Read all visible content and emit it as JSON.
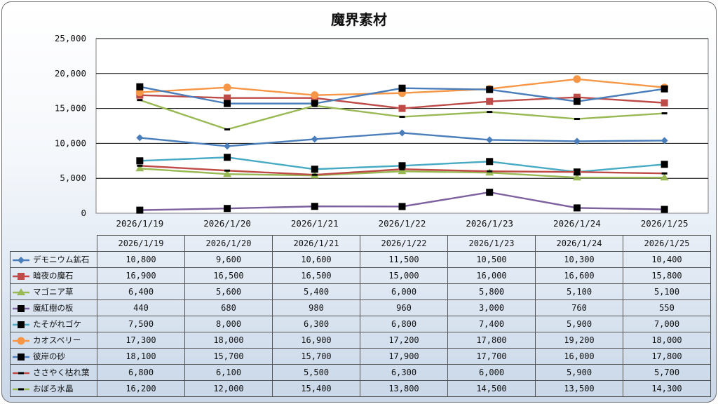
{
  "chart_data": {
    "type": "line",
    "title": "魔界素材",
    "categories": [
      "2026/1/19",
      "2026/1/20",
      "2026/1/21",
      "2026/1/22",
      "2026/1/23",
      "2026/1/24",
      "2026/1/25"
    ],
    "ylim": [
      0,
      25000
    ],
    "yticks": [
      "0",
      "5,000",
      "10,000",
      "15,000",
      "20,000",
      "25,000"
    ],
    "grid": true,
    "legend": "data-table",
    "series": [
      {
        "name": "デモニウム鉱石",
        "color": "#4a7ebb",
        "marker": "diamond",
        "values": [
          10800,
          9600,
          10600,
          11500,
          10500,
          10300,
          10400
        ],
        "labels": [
          "10,800",
          "9,600",
          "10,600",
          "11,500",
          "10,500",
          "10,300",
          "10,400"
        ]
      },
      {
        "name": "暗夜の魔石",
        "color": "#be4b48",
        "marker": "square",
        "values": [
          16900,
          16500,
          16500,
          15000,
          16000,
          16600,
          15800
        ],
        "labels": [
          "16,900",
          "16,500",
          "16,500",
          "15,000",
          "16,000",
          "16,600",
          "15,800"
        ]
      },
      {
        "name": "マゴニア草",
        "color": "#98b954",
        "marker": "triangle",
        "values": [
          6400,
          5600,
          5400,
          6000,
          5800,
          5100,
          5100
        ],
        "labels": [
          "6,400",
          "5,600",
          "5,400",
          "6,000",
          "5,800",
          "5,100",
          "5,100"
        ]
      },
      {
        "name": "魔紅樹の板",
        "color": "#7d60a0",
        "marker": "xsquare",
        "values": [
          440,
          680,
          980,
          960,
          3000,
          760,
          550
        ],
        "labels": [
          "440",
          "680",
          "980",
          "960",
          "3,000",
          "760",
          "550"
        ]
      },
      {
        "name": "たそがれゴケ",
        "color": "#46aac5",
        "marker": "xsquare",
        "values": [
          7500,
          8000,
          6300,
          6800,
          7400,
          5900,
          7000
        ],
        "labels": [
          "7,500",
          "8,000",
          "6,300",
          "6,800",
          "7,400",
          "5,900",
          "7,000"
        ]
      },
      {
        "name": "カオスベリー",
        "color": "#f79646",
        "marker": "circle",
        "values": [
          17300,
          18000,
          16900,
          17200,
          17800,
          19200,
          18000
        ],
        "labels": [
          "17,300",
          "18,000",
          "16,900",
          "17,200",
          "17,800",
          "19,200",
          "18,000"
        ]
      },
      {
        "name": "彼岸の砂",
        "color": "#4a7ebb",
        "marker": "xsquare",
        "values": [
          18100,
          15700,
          15700,
          17900,
          17700,
          16000,
          17800
        ],
        "labels": [
          "18,100",
          "15,700",
          "15,700",
          "17,900",
          "17,700",
          "16,000",
          "17,800"
        ]
      },
      {
        "name": "ささやく枯れ葉",
        "color": "#be4b48",
        "marker": "dash",
        "values": [
          6800,
          6100,
          5500,
          6300,
          6000,
          5900,
          5700
        ],
        "labels": [
          "6,800",
          "6,100",
          "5,500",
          "6,300",
          "6,000",
          "5,900",
          "5,700"
        ]
      },
      {
        "name": "おぼろ水晶",
        "color": "#98b954",
        "marker": "dash",
        "values": [
          16200,
          12000,
          15400,
          13800,
          14500,
          13500,
          14300
        ],
        "labels": [
          "16,200",
          "12,000",
          "15,400",
          "13,800",
          "14,500",
          "13,500",
          "14,300"
        ]
      }
    ]
  }
}
